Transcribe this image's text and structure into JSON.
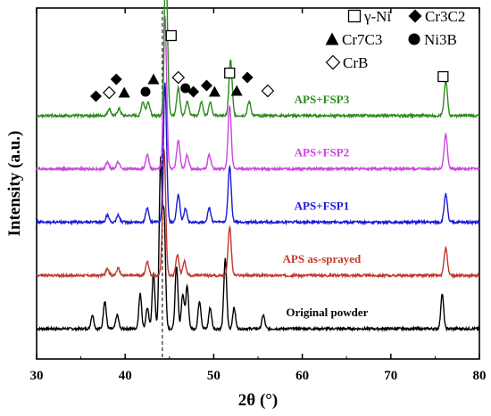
{
  "chart_data": {
    "type": "line",
    "xlabel": "2θ (°)",
    "ylabel": "Intensity (a.u.)",
    "xlim": [
      30,
      80
    ],
    "xticks": [
      "30",
      "40",
      "50",
      "60",
      "70",
      "80"
    ],
    "reference_line_x": 44.2,
    "series": [
      {
        "name": "Original powder",
        "color": "#000000",
        "baseline": 0.5,
        "peaks": [
          [
            36.3,
            2
          ],
          [
            37.7,
            4
          ],
          [
            39.1,
            2
          ],
          [
            41.7,
            5
          ],
          [
            42.5,
            3
          ],
          [
            43.2,
            8
          ],
          [
            44.0,
            24
          ],
          [
            44.4,
            16
          ],
          [
            45.8,
            9
          ],
          [
            46.5,
            5
          ],
          [
            47.0,
            6
          ],
          [
            48.4,
            4
          ],
          [
            49.6,
            3
          ],
          [
            51.3,
            10
          ],
          [
            52.3,
            3
          ],
          [
            55.6,
            2
          ],
          [
            75.8,
            5
          ]
        ]
      },
      {
        "name": "APS as-sprayed",
        "color": "#c0392b",
        "baseline": 1.8,
        "peaks": [
          [
            38.0,
            1
          ],
          [
            39.2,
            1
          ],
          [
            42.5,
            2
          ],
          [
            44.4,
            18
          ],
          [
            45.9,
            3
          ],
          [
            46.7,
            2
          ],
          [
            51.8,
            7
          ],
          [
            76.2,
            4
          ]
        ]
      },
      {
        "name": "APS+FSP1",
        "color": "#1a1ad6",
        "baseline": 3.1,
        "peaks": [
          [
            38.0,
            1
          ],
          [
            39.2,
            1
          ],
          [
            42.5,
            2
          ],
          [
            44.5,
            20
          ],
          [
            46.0,
            4
          ],
          [
            46.8,
            2
          ],
          [
            49.5,
            2
          ],
          [
            51.8,
            8
          ],
          [
            76.2,
            4
          ]
        ]
      },
      {
        "name": "APS+FSP2",
        "color": "#cc44e0",
        "baseline": 4.4,
        "peaks": [
          [
            38.0,
            1
          ],
          [
            39.2,
            1
          ],
          [
            42.5,
            2
          ],
          [
            44.5,
            22
          ],
          [
            46.0,
            4
          ],
          [
            47.0,
            2
          ],
          [
            49.5,
            2
          ],
          [
            51.8,
            9
          ],
          [
            76.2,
            5
          ]
        ]
      },
      {
        "name": "APS+FSP3",
        "color": "#2e8b1e",
        "baseline": 5.7,
        "peaks": [
          [
            38.2,
            1
          ],
          [
            39.3,
            1
          ],
          [
            42.0,
            2
          ],
          [
            42.6,
            2
          ],
          [
            44.6,
            22
          ],
          [
            46.0,
            4
          ],
          [
            47.0,
            2
          ],
          [
            48.6,
            2
          ],
          [
            49.6,
            2
          ],
          [
            51.9,
            8
          ],
          [
            54.0,
            2
          ],
          [
            76.2,
            5
          ]
        ]
      }
    ],
    "legend": [
      {
        "symbol": "open-square",
        "label": "γ-Ni"
      },
      {
        "symbol": "filled-diamond",
        "label": "Cr3C2"
      },
      {
        "symbol": "filled-triangle",
        "label": "Cr7C3"
      },
      {
        "symbol": "filled-circle",
        "label": "Ni3B"
      },
      {
        "symbol": "open-diamond",
        "label": "CrB"
      }
    ],
    "phase_markers": [
      {
        "symbol": "filled-diamond",
        "x": 36.7
      },
      {
        "symbol": "open-diamond",
        "x": 38.2
      },
      {
        "symbol": "filled-triangle",
        "x": 39.9
      },
      {
        "symbol": "filled-diamond",
        "x": 39.0
      },
      {
        "symbol": "filled-circle",
        "x": 42.3
      },
      {
        "symbol": "filled-triangle",
        "x": 43.2
      },
      {
        "symbol": "open-square",
        "x": 45.2
      },
      {
        "symbol": "open-diamond",
        "x": 46.0
      },
      {
        "symbol": "filled-circle",
        "x": 46.8
      },
      {
        "symbol": "filled-diamond",
        "x": 47.7
      },
      {
        "symbol": "filled-diamond",
        "x": 49.2
      },
      {
        "symbol": "filled-triangle",
        "x": 50.1
      },
      {
        "symbol": "open-square",
        "x": 51.8
      },
      {
        "symbol": "filled-triangle",
        "x": 52.6
      },
      {
        "symbol": "filled-diamond",
        "x": 53.8
      },
      {
        "symbol": "open-diamond",
        "x": 56.1
      },
      {
        "symbol": "open-square",
        "x": 75.9
      }
    ]
  }
}
